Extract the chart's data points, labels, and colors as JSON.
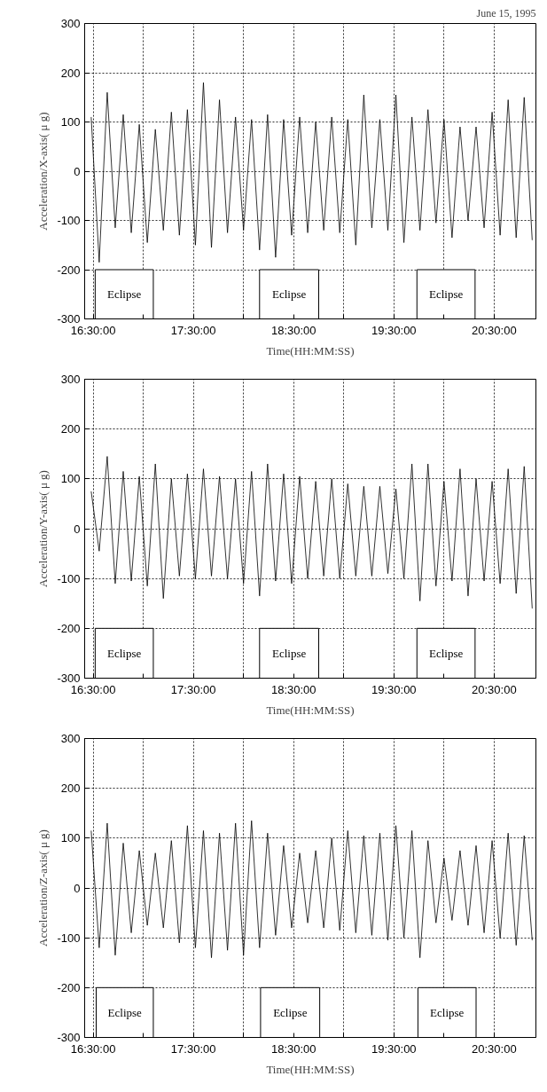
{
  "chart_data": [
    {
      "type": "line",
      "title": "June 15, 1995",
      "xlabel": "Time(HH:MM:SS)",
      "ylabel": "Acceleration/X-axis( μ g)",
      "xlim": [
        16.415,
        20.917
      ],
      "ylim": [
        -300,
        300
      ],
      "xticks": [
        {
          "value": 16.5,
          "label": "16:30:00"
        },
        {
          "value": 17.0,
          "label": null
        },
        {
          "value": 17.5,
          "label": "17:30:00"
        },
        {
          "value": 18.0,
          "label": null
        },
        {
          "value": 18.5,
          "label": "18:30:00"
        },
        {
          "value": 19.0,
          "label": null
        },
        {
          "value": 19.5,
          "label": "19:30:00"
        },
        {
          "value": 20.0,
          "label": null
        },
        {
          "value": 20.5,
          "label": "20:30:00"
        }
      ],
      "yticks": [
        -300,
        -200,
        -100,
        0,
        100,
        200,
        300
      ],
      "grid": true,
      "line_style": "solid",
      "bands": [
        {
          "axis": "x",
          "from": 16.52,
          "to": 17.1,
          "label": "Eclipse"
        },
        {
          "axis": "x",
          "from": 18.16,
          "to": 18.75,
          "label": "Eclipse"
        },
        {
          "axis": "x",
          "from": 19.73,
          "to": 20.31,
          "label": "Eclipse"
        }
      ],
      "x": [
        16.48,
        16.56,
        16.64,
        16.72,
        16.8,
        16.88,
        16.96,
        17.04,
        17.12,
        17.2,
        17.28,
        17.36,
        17.44,
        17.52,
        17.6,
        17.68,
        17.76,
        17.84,
        17.92,
        18.0,
        18.08,
        18.16,
        18.24,
        18.32,
        18.4,
        18.48,
        18.56,
        18.64,
        18.72,
        18.8,
        18.88,
        18.96,
        19.04,
        19.12,
        19.2,
        19.28,
        19.36,
        19.44,
        19.52,
        19.6,
        19.68,
        19.76,
        19.84,
        19.92,
        20.0,
        20.08,
        20.16,
        20.24,
        20.32,
        20.4,
        20.48,
        20.56,
        20.64,
        20.72,
        20.8,
        20.88
      ],
      "series": [
        {
          "color": "#000000",
          "values": [
            110,
            -185,
            160,
            -115,
            115,
            -125,
            95,
            -145,
            85,
            -120,
            120,
            -130,
            125,
            -150,
            180,
            -155,
            145,
            -125,
            110,
            -120,
            105,
            -160,
            115,
            -175,
            105,
            -130,
            110,
            -125,
            100,
            -120,
            110,
            -125,
            105,
            -150,
            155,
            -115,
            105,
            -120,
            155,
            -145,
            110,
            -120,
            125,
            -105,
            105,
            -135,
            90,
            -100,
            90,
            -115,
            120,
            -130,
            145,
            -135,
            150,
            -140
          ]
        }
      ]
    },
    {
      "type": "line",
      "xlabel": "Time(HH:MM:SS)",
      "ylabel": "Acceleration/Y-axis( μ g)",
      "xlim": [
        16.415,
        20.917
      ],
      "ylim": [
        -300,
        300
      ],
      "xticks": [
        {
          "value": 16.5,
          "label": "16:30:00"
        },
        {
          "value": 17.0,
          "label": null
        },
        {
          "value": 17.5,
          "label": "17:30:00"
        },
        {
          "value": 18.0,
          "label": null
        },
        {
          "value": 18.5,
          "label": "18:30:00"
        },
        {
          "value": 19.0,
          "label": null
        },
        {
          "value": 19.5,
          "label": "19:30:00"
        },
        {
          "value": 20.0,
          "label": null
        },
        {
          "value": 20.5,
          "label": "20:30:00"
        }
      ],
      "yticks": [
        -300,
        -200,
        -100,
        0,
        100,
        200,
        300
      ],
      "grid": true,
      "line_style": "solid",
      "bands": [
        {
          "axis": "x",
          "from": 16.52,
          "to": 17.1,
          "label": "Eclipse"
        },
        {
          "axis": "x",
          "from": 18.16,
          "to": 18.75,
          "label": "Eclipse"
        },
        {
          "axis": "x",
          "from": 19.73,
          "to": 20.31,
          "label": "Eclipse"
        }
      ],
      "x": [
        16.48,
        16.56,
        16.64,
        16.72,
        16.8,
        16.88,
        16.96,
        17.04,
        17.12,
        17.2,
        17.28,
        17.36,
        17.44,
        17.52,
        17.6,
        17.68,
        17.76,
        17.84,
        17.92,
        18.0,
        18.08,
        18.16,
        18.24,
        18.32,
        18.4,
        18.48,
        18.56,
        18.64,
        18.72,
        18.8,
        18.88,
        18.96,
        19.04,
        19.12,
        19.2,
        19.28,
        19.36,
        19.44,
        19.52,
        19.6,
        19.68,
        19.76,
        19.84,
        19.92,
        20.0,
        20.08,
        20.16,
        20.24,
        20.32,
        20.4,
        20.48,
        20.56,
        20.64,
        20.72,
        20.8,
        20.88
      ],
      "series": [
        {
          "color": "#000000",
          "values": [
            75,
            -45,
            145,
            -110,
            115,
            -105,
            105,
            -115,
            130,
            -140,
            100,
            -95,
            110,
            -100,
            120,
            -95,
            105,
            -100,
            100,
            -110,
            115,
            -135,
            130,
            -105,
            110,
            -110,
            105,
            -100,
            95,
            -95,
            100,
            -100,
            90,
            -95,
            85,
            -95,
            85,
            -90,
            80,
            -100,
            130,
            -145,
            130,
            -115,
            95,
            -105,
            120,
            -135,
            100,
            -105,
            95,
            -110,
            120,
            -130,
            125,
            -160
          ]
        }
      ]
    },
    {
      "type": "line",
      "xlabel": "Time(HH:MM:SS)",
      "ylabel": "Acceleration/Z-axis( μ g)",
      "xlim": [
        16.415,
        20.917
      ],
      "ylim": [
        -300,
        300
      ],
      "xticks": [
        {
          "value": 16.5,
          "label": "16:30:00"
        },
        {
          "value": 17.0,
          "label": null
        },
        {
          "value": 17.5,
          "label": "17:30:00"
        },
        {
          "value": 18.0,
          "label": null
        },
        {
          "value": 18.5,
          "label": "18:30:00"
        },
        {
          "value": 19.0,
          "label": null
        },
        {
          "value": 19.5,
          "label": "19:30:00"
        },
        {
          "value": 20.0,
          "label": null
        },
        {
          "value": 20.5,
          "label": "20:30:00"
        }
      ],
      "yticks": [
        -300,
        -200,
        -100,
        0,
        100,
        200,
        300
      ],
      "grid": true,
      "line_style": "solid",
      "bands": [
        {
          "axis": "x",
          "from": 16.53,
          "to": 17.1,
          "label": "Eclipse"
        },
        {
          "axis": "x",
          "from": 18.17,
          "to": 18.76,
          "label": "Eclipse"
        },
        {
          "axis": "x",
          "from": 19.74,
          "to": 20.32,
          "label": "Eclipse"
        }
      ],
      "x": [
        16.48,
        16.56,
        16.64,
        16.72,
        16.8,
        16.88,
        16.96,
        17.04,
        17.12,
        17.2,
        17.28,
        17.36,
        17.44,
        17.52,
        17.6,
        17.68,
        17.76,
        17.84,
        17.92,
        18.0,
        18.08,
        18.16,
        18.24,
        18.32,
        18.4,
        18.48,
        18.56,
        18.64,
        18.72,
        18.8,
        18.88,
        18.96,
        19.04,
        19.12,
        19.2,
        19.28,
        19.36,
        19.44,
        19.52,
        19.6,
        19.68,
        19.76,
        19.84,
        19.92,
        20.0,
        20.08,
        20.16,
        20.24,
        20.32,
        20.4,
        20.48,
        20.56,
        20.64,
        20.72,
        20.8,
        20.88
      ],
      "series": [
        {
          "color": "#000000",
          "values": [
            115,
            -120,
            130,
            -135,
            90,
            -90,
            75,
            -75,
            70,
            -80,
            95,
            -110,
            125,
            -120,
            115,
            -140,
            110,
            -125,
            130,
            -135,
            135,
            -120,
            110,
            -95,
            85,
            -80,
            70,
            -70,
            75,
            -80,
            100,
            -85,
            115,
            -90,
            105,
            -95,
            110,
            -105,
            125,
            -100,
            115,
            -140,
            95,
            -70,
            60,
            -65,
            75,
            -75,
            85,
            -90,
            95,
            -100,
            110,
            -115,
            105,
            -105
          ]
        }
      ]
    }
  ]
}
